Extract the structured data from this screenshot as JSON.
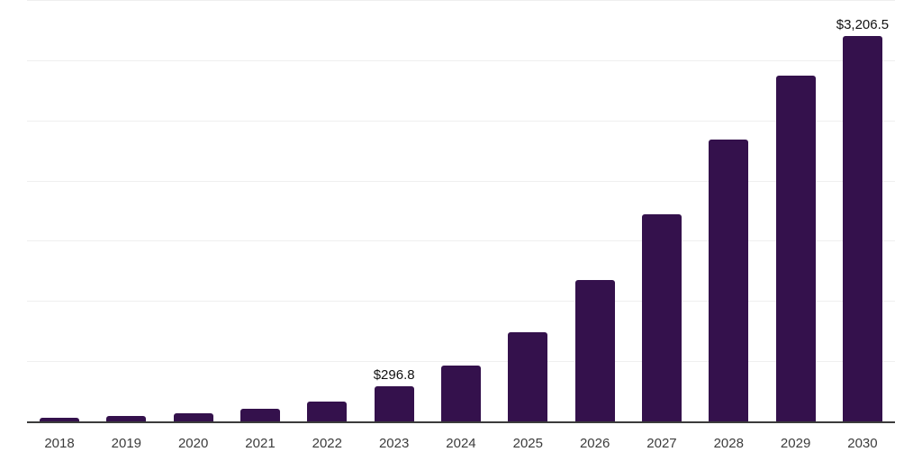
{
  "chart_data": {
    "type": "bar",
    "title": "",
    "xlabel": "",
    "ylabel": "",
    "categories": [
      "2018",
      "2019",
      "2020",
      "2021",
      "2022",
      "2023",
      "2024",
      "2025",
      "2026",
      "2027",
      "2028",
      "2029",
      "2030"
    ],
    "values": [
      35,
      55,
      75,
      112,
      172,
      296.8,
      475,
      750,
      1185,
      1725,
      2345,
      2880,
      3206.5
    ],
    "data_labels": [
      "",
      "",
      "",
      "",
      "",
      "$296.8",
      "",
      "",
      "",
      "",
      "",
      "",
      "$3,206.5"
    ],
    "ylim": [
      0,
      3500
    ],
    "gridline_step": 500,
    "grid": true,
    "y_axis_tick_labels_visible": false,
    "legend": false
  },
  "colors": {
    "bar": "#34114c",
    "gridline": "#efefef",
    "axis_line": "#3b3b3b",
    "tick_label": "#3c3c3c",
    "data_label": "#111111",
    "background": "#ffffff"
  }
}
